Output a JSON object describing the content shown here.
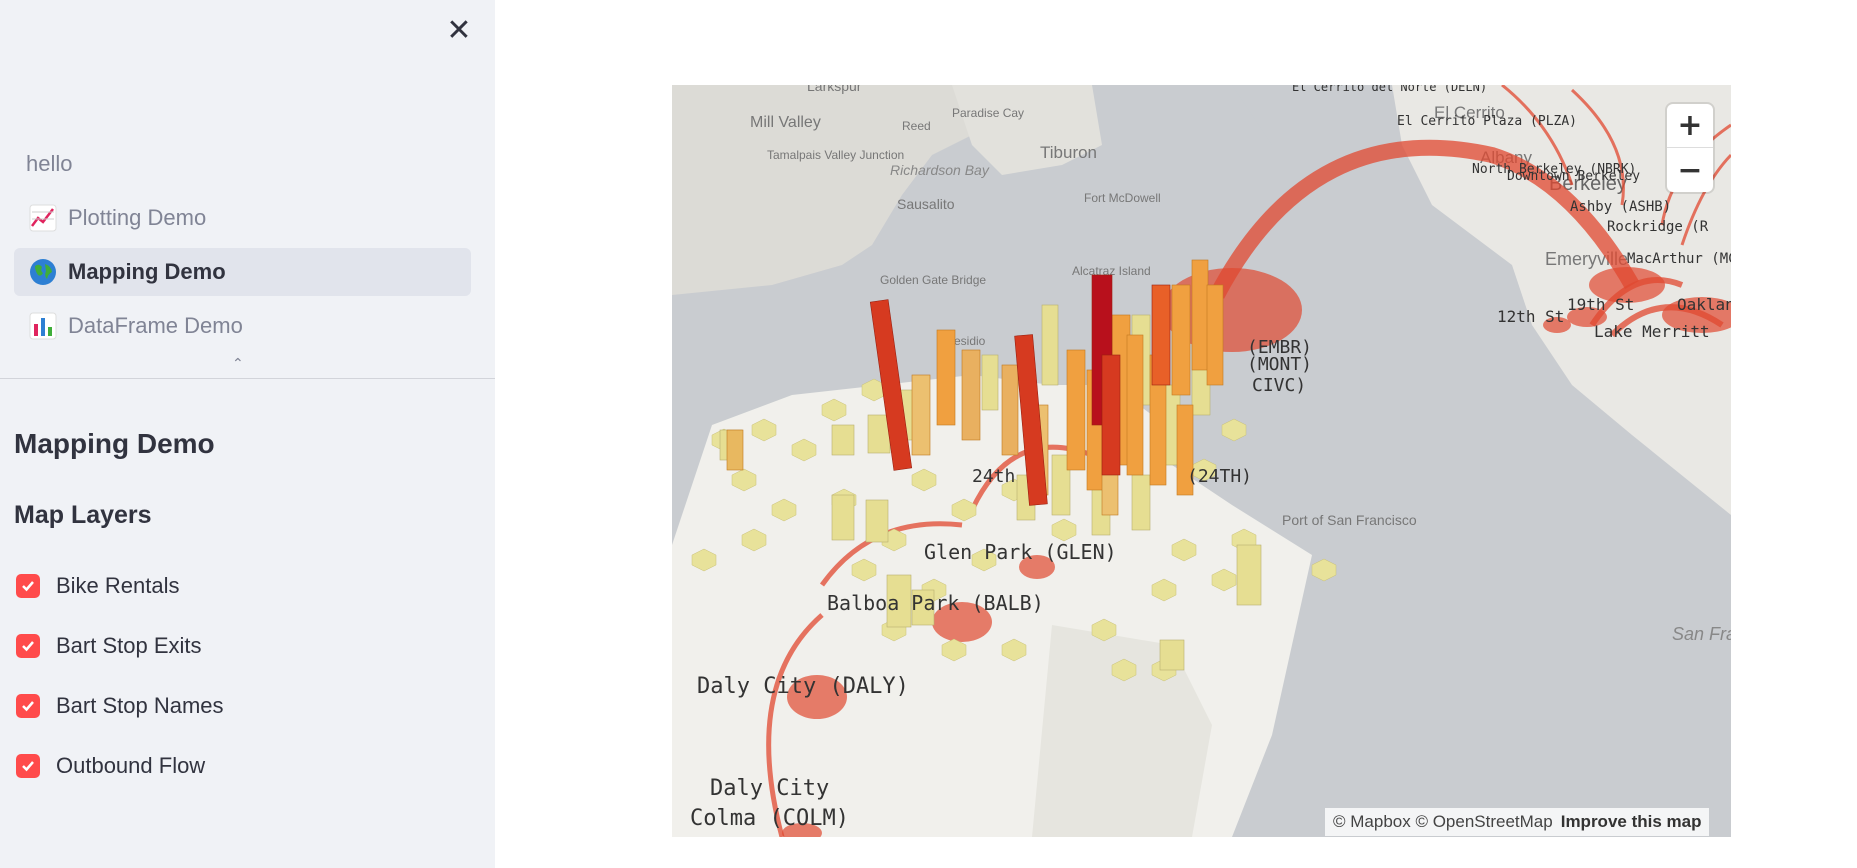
{
  "sidebar": {
    "close_icon": "close-icon",
    "nav": [
      {
        "label": "hello",
        "icon": ""
      },
      {
        "label": "Plotting Demo",
        "icon": "chart-line-icon"
      },
      {
        "label": "Mapping Demo",
        "icon": "globe-icon",
        "active": true
      },
      {
        "label": "DataFrame Demo",
        "icon": "bar-chart-icon"
      }
    ],
    "collapse_icon": "chevron-up-icon",
    "page_title": "Mapping Demo",
    "layers_title": "Map Layers",
    "layers": [
      {
        "label": "Bike Rentals",
        "checked": true
      },
      {
        "label": "Bart Stop Exits",
        "checked": true
      },
      {
        "label": "Bart Stop Names",
        "checked": true
      },
      {
        "label": "Outbound Flow",
        "checked": true
      }
    ]
  },
  "map": {
    "zoom_in": "+",
    "zoom_out": "−",
    "attribution": "© Mapbox © OpenStreetMap",
    "improve": "Improve this map",
    "place_labels": [
      "Larkspur",
      "Mill Valley",
      "Reed",
      "Paradise Cay",
      "Tiburon",
      "Tamalpais Valley Junction",
      "Richardson Bay",
      "Sausalito",
      "Fort McDowell",
      "Alcatraz Island",
      "Golden Gate Bridge",
      "Presidio",
      "El Cerrito",
      "Albany",
      "Berkeley",
      "Emeryville",
      "Port of San Francisco",
      "San Francisco Bay",
      "Daly City"
    ],
    "stop_labels": [
      "(EMBR)",
      "(MONT)",
      "CIVC)",
      "(24TH)",
      "24th",
      "Glen Park (GLEN)",
      "Balboa Park (BALB)",
      "Daly City (DALY)",
      "Colma (COLM)",
      "El Cerrito del Norte (DELN)",
      "El Cerrito Plaza (PLZA)",
      "North Berkeley (NBRK)",
      "Downtown Berkeley",
      "Ashby (ASHB)",
      "Rockridge (R",
      "MacArthur (MCAR",
      "19th St",
      "12th St",
      "Lake Merritt",
      "Oakland"
    ],
    "colors": {
      "water": "#c9ccd0",
      "land": "#f1f0ec",
      "hex_low": "#e8e29a",
      "hex_mid": "#f0a040",
      "hex_high": "#c8141c",
      "flow": "#e04830"
    }
  }
}
